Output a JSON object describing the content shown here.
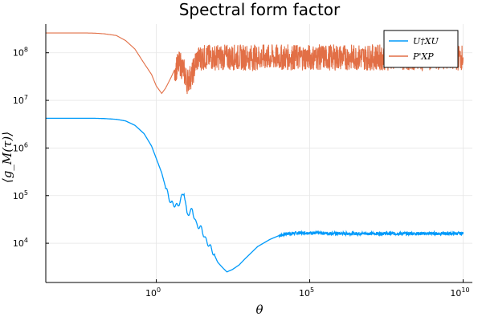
{
  "chart_data": {
    "type": "line",
    "title": "Spectral form factor",
    "xlabel": "θ",
    "ylabel": "⟨g_M(τ)⟩",
    "xscale": "log",
    "yscale": "log",
    "xlim": [
      0.00025,
      20000000000
    ],
    "ylim": [
      1500,
      400000000
    ],
    "grid": true,
    "legend_position": "top-right",
    "xticks": [
      {
        "value": 1,
        "base": "10",
        "exp": "0"
      },
      {
        "value": 100000,
        "base": "10",
        "exp": "5"
      },
      {
        "value": 10000000000,
        "base": "10",
        "exp": "10"
      }
    ],
    "yticks": [
      {
        "value": 10000,
        "base": "10",
        "exp": "4"
      },
      {
        "value": 100000,
        "base": "10",
        "exp": "5"
      },
      {
        "value": 1000000,
        "base": "10",
        "exp": "6"
      },
      {
        "value": 10000000,
        "base": "10",
        "exp": "7"
      },
      {
        "value": 100000000,
        "base": "10",
        "exp": "8"
      }
    ],
    "series": [
      {
        "name": "U†XU",
        "color": "#009AFA",
        "x": [
          0.00025,
          0.001,
          0.005,
          0.01,
          0.02,
          0.05,
          0.1,
          0.2,
          0.4,
          0.7,
          1,
          1.5,
          2,
          3,
          5,
          8,
          10,
          15,
          20,
          30,
          40,
          60,
          80,
          100,
          150,
          200,
          300,
          500,
          800,
          1000,
          2000,
          5000,
          10000,
          20000,
          50000,
          100000,
          1000000,
          10000000,
          100000000,
          1000000000,
          10000000000
        ],
        "y": [
          4200000,
          4200000,
          4200000,
          4200000,
          4150000,
          4000000,
          3700000,
          3000000,
          2000000,
          1100000,
          600000,
          300000,
          150000,
          70000,
          60000,
          120000,
          40000,
          50000,
          25000,
          20000,
          12000,
          8000,
          5500,
          4000,
          3000,
          2500,
          2800,
          3500,
          4800,
          5500,
          8500,
          12000,
          14500,
          16000,
          16500,
          16500,
          16000,
          16000,
          16000,
          16000,
          16000
        ]
      },
      {
        "name": "P'XP",
        "color": "#E26F46",
        "x": [
          0.00025,
          0.001,
          0.005,
          0.01,
          0.02,
          0.05,
          0.1,
          0.2,
          0.4,
          0.7,
          1,
          1.5,
          2,
          3,
          4,
          6,
          8,
          10,
          15,
          20,
          30,
          50,
          100,
          1000,
          100000,
          10000000,
          1000000000,
          10000000000
        ],
        "y": [
          260000000,
          260000000,
          260000000,
          258000000,
          250000000,
          230000000,
          180000000,
          120000000,
          60000000,
          35000000,
          20000000,
          14000000,
          18000000,
          30000000,
          45000000,
          60000000,
          40000000,
          25000000,
          35000000,
          70000000,
          80000000,
          80000000,
          80000000,
          80000000,
          80000000,
          80000000,
          80000000,
          80000000
        ]
      }
    ]
  }
}
